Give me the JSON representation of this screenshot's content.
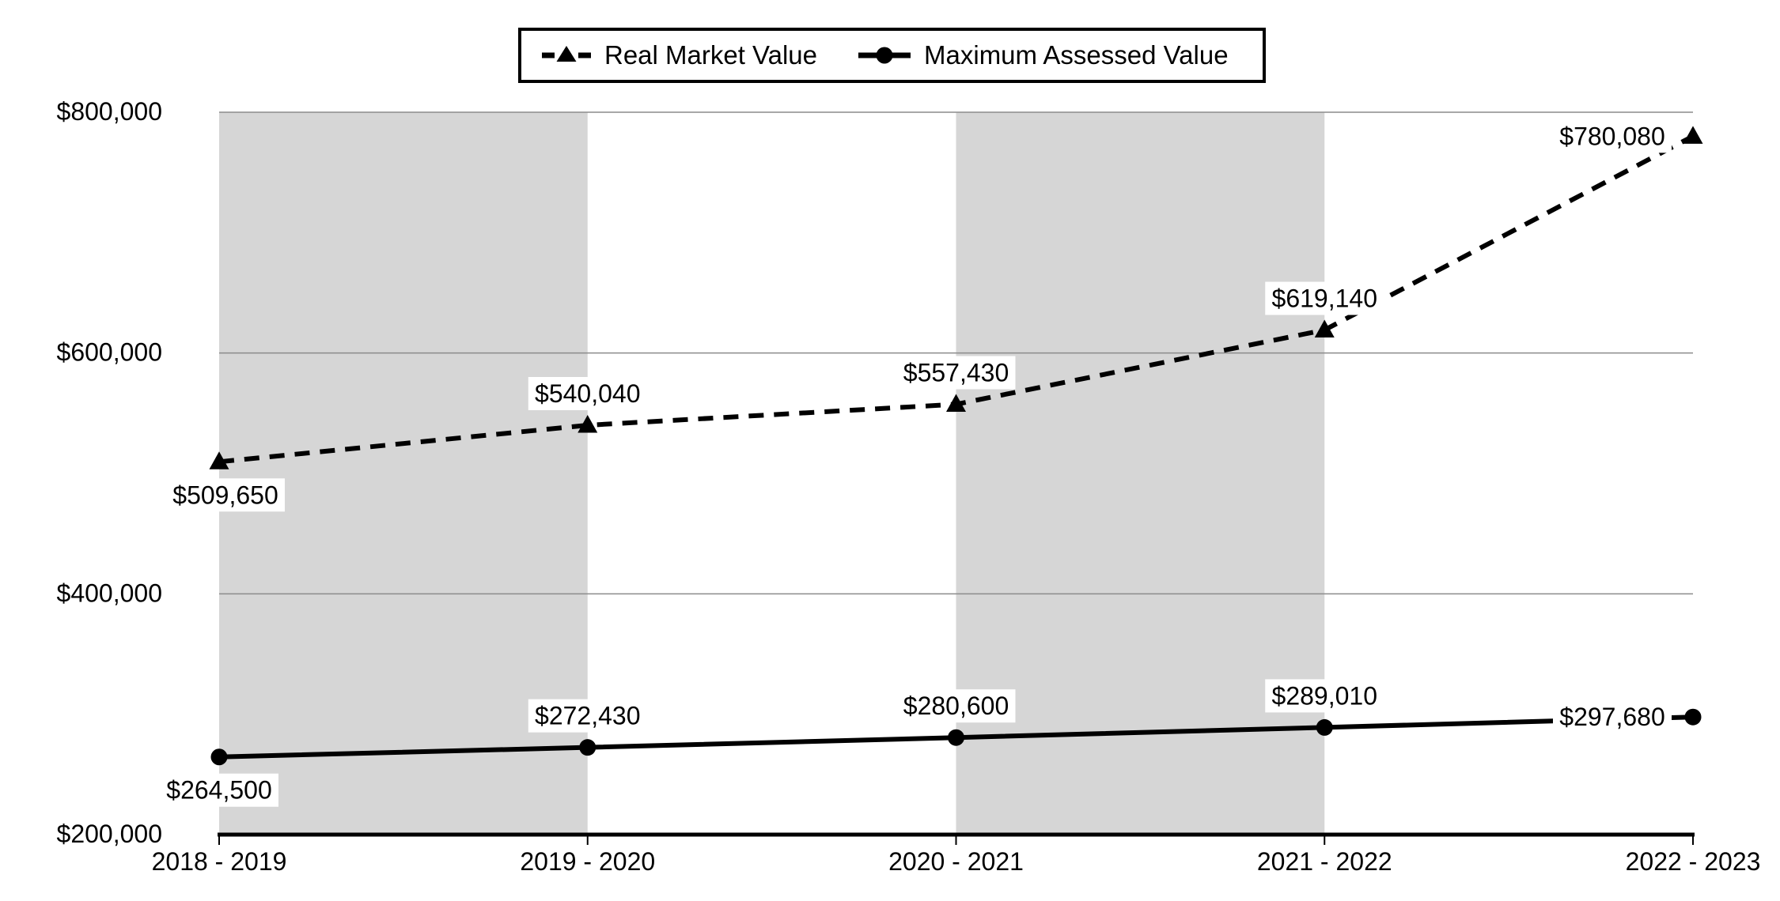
{
  "chart_data": {
    "type": "line",
    "title": "",
    "xlabel": "",
    "ylabel": "",
    "categories": [
      "2018 - 2019",
      "2019 - 2020",
      "2020 - 2021",
      "2021 - 2022",
      "2022 - 2023"
    ],
    "series": [
      {
        "name": "Real Market Value",
        "marker": "triangle",
        "line_style": "dashed",
        "values": [
          509650,
          540040,
          557430,
          619140,
          780080
        ],
        "labels": [
          "$509,650",
          "$540,040",
          "$557,430",
          "$619,140",
          "$780,080"
        ],
        "label_placement": [
          "below",
          "above",
          "above",
          "above",
          "left"
        ]
      },
      {
        "name": "Maximum Assessed Value",
        "marker": "circle",
        "line_style": "solid",
        "values": [
          264500,
          272430,
          280600,
          289010,
          297680
        ],
        "labels": [
          "$264,500",
          "$272,430",
          "$280,600",
          "$289,010",
          "$297,680"
        ],
        "label_placement": [
          "below",
          "above",
          "above",
          "above",
          "left"
        ]
      }
    ],
    "y_axis": {
      "min": 200000,
      "max": 800000,
      "step": 200000,
      "tick_labels": [
        "$200,000",
        "$400,000",
        "$600,000",
        "$800,000"
      ]
    },
    "legend": {
      "position": "top",
      "border": true
    },
    "grid": true,
    "plot_bands": {
      "indices": [
        0,
        2
      ]
    },
    "colors": {
      "series": "#000000",
      "band": "#d6d6d6",
      "gridline": "#8b8b8b",
      "axis": "#000000",
      "label_bg": "#ffffff",
      "background": "#ffffff",
      "text": "#000000"
    }
  }
}
